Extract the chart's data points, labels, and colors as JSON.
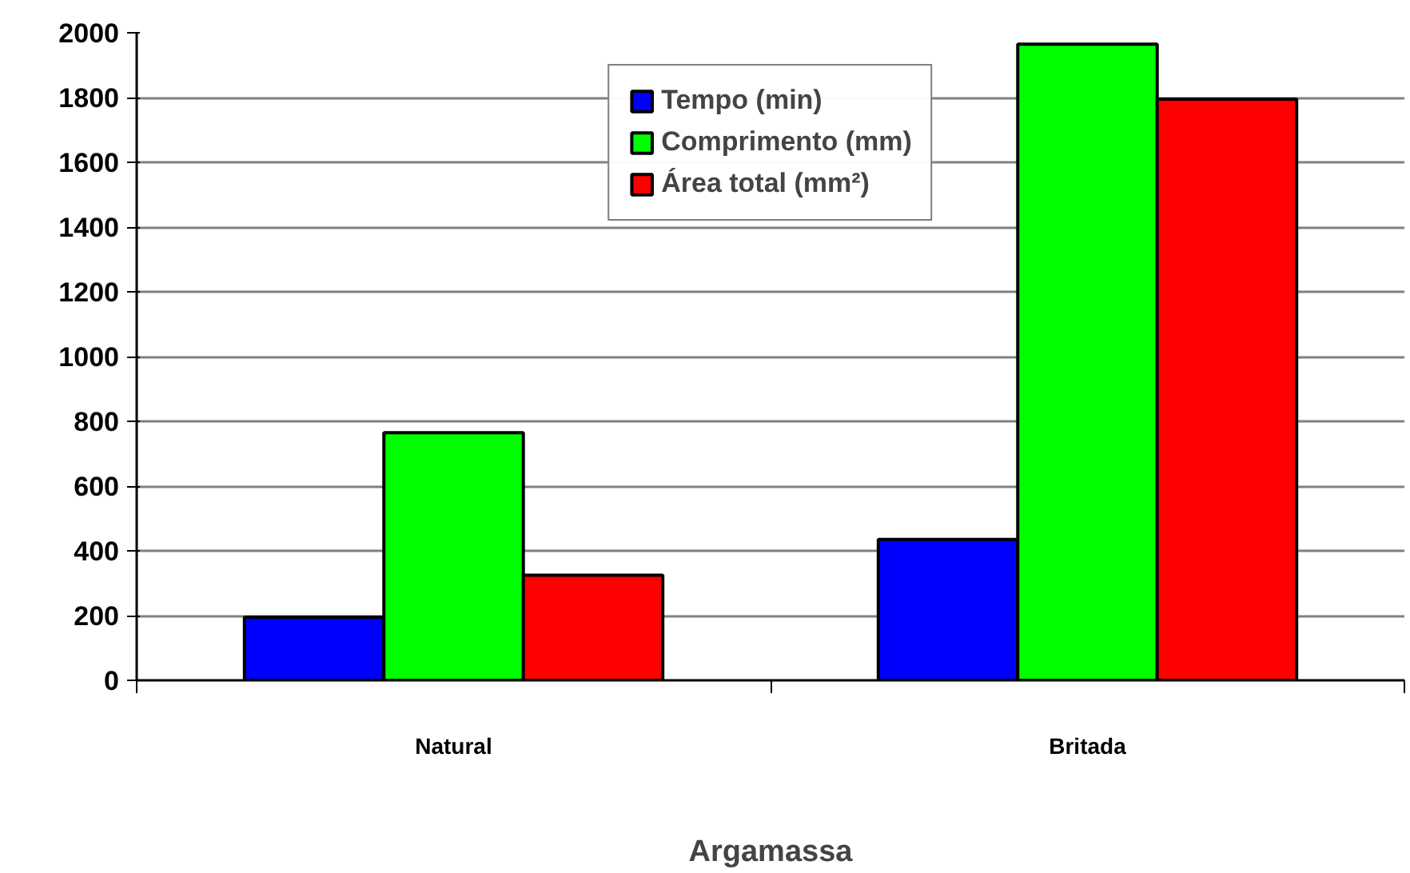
{
  "chart_data": {
    "type": "bar",
    "xlabel": "Argamassa",
    "categories": [
      "Natural",
      "Britada"
    ],
    "series": [
      {
        "name": "Tempo (min)",
        "color": "#0000ff",
        "values": [
          195,
          435
        ]
      },
      {
        "name": "Comprimento (mm)",
        "color": "#00ff00",
        "values": [
          765,
          1965
        ]
      },
      {
        "name": "Área total (mm²)",
        "color": "#ff0000",
        "values": [
          325,
          1795
        ]
      }
    ],
    "ylim": [
      0,
      2000
    ],
    "yticks": [
      0,
      200,
      400,
      600,
      800,
      1000,
      1200,
      1400,
      1600,
      1800,
      2000
    ],
    "grid": "y",
    "legend": "top"
  }
}
